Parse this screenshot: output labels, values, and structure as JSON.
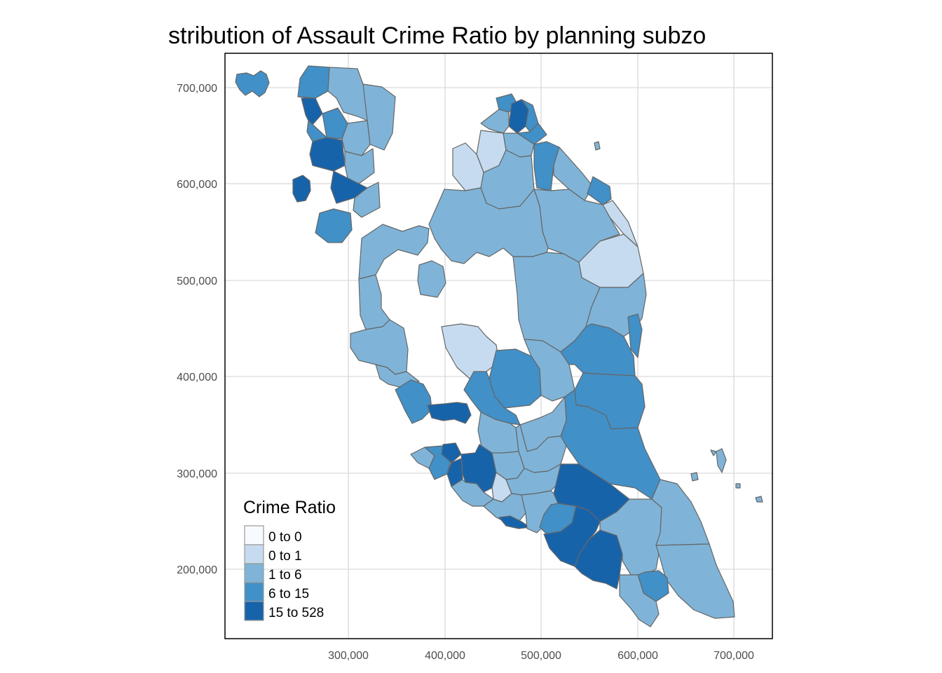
{
  "title": "stribution of Assault Crime Ratio by planning subzo",
  "axes": {
    "x_ticks": [
      "300,000",
      "400,000",
      "500,000",
      "600,000",
      "700,000"
    ],
    "y_ticks": [
      "700,000",
      "600,000",
      "500,000",
      "400,000",
      "300,000",
      "200,000"
    ],
    "x_range": [
      180000,
      740000
    ],
    "y_range": [
      130000,
      730000
    ],
    "grid": true
  },
  "legend": {
    "title": "Crime Ratio",
    "placement": "bottom-left",
    "classes": [
      {
        "label": "0 to 0",
        "color": "#f7fbff"
      },
      {
        "label": "0 to 1",
        "color": "#c6dbef"
      },
      {
        "label": "1 to 6",
        "color": "#7fb4d8"
      },
      {
        "label": "6 to 15",
        "color": "#4190c8"
      },
      {
        "label": "15 to 528",
        "color": "#1763aa"
      }
    ]
  },
  "colors": {
    "border": "#666666",
    "panel_border": "#000000",
    "grid": "#d9d9d9"
  }
}
